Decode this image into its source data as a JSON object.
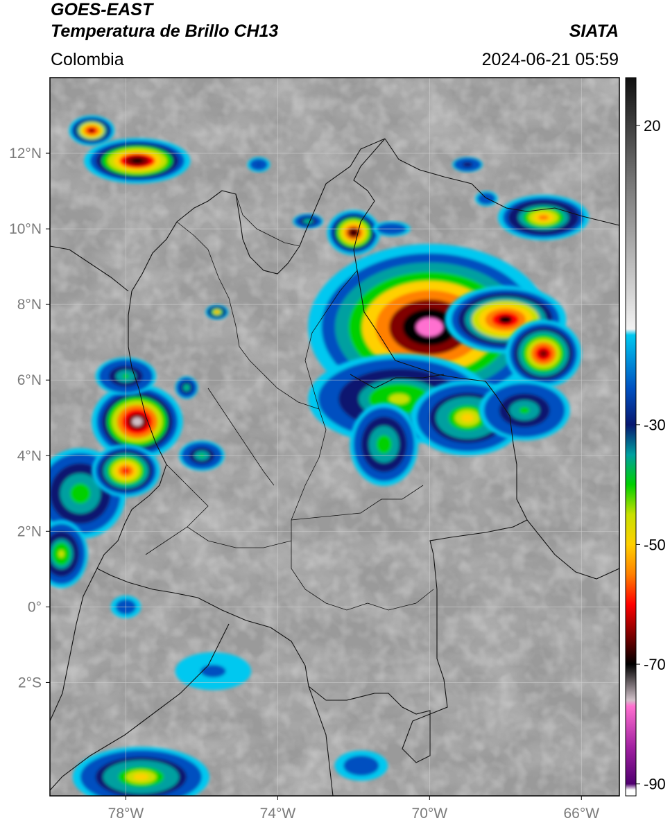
{
  "header": {
    "satellite": "GOES-EAST",
    "product": "Temperatura de Brillo CH13",
    "region": "Colombia",
    "organization": "SIATA",
    "datetime": "2024-06-21 05:59"
  },
  "map": {
    "lon_range": [
      -80,
      -65
    ],
    "lat_range": [
      -5,
      14
    ],
    "lat_ticks": [
      {
        "value": 12,
        "label": "12°N"
      },
      {
        "value": 10,
        "label": "10°N"
      },
      {
        "value": 8,
        "label": "8°N"
      },
      {
        "value": 6,
        "label": "6°N"
      },
      {
        "value": 4,
        "label": "4°N"
      },
      {
        "value": 2,
        "label": "2°N"
      },
      {
        "value": 0,
        "label": "0°"
      },
      {
        "value": -2,
        "label": "2°S"
      }
    ],
    "lon_ticks": [
      {
        "value": -78,
        "label": "78°W"
      },
      {
        "value": -74,
        "label": "74°W"
      },
      {
        "value": -70,
        "label": "70°W"
      },
      {
        "value": -66,
        "label": "66°W"
      }
    ],
    "grid": true
  },
  "colorbar": {
    "range": [
      -92,
      28
    ],
    "ticks": [
      {
        "value": 20,
        "label": "20"
      },
      {
        "value": -30,
        "label": "-30"
      },
      {
        "value": -50,
        "label": "-50"
      },
      {
        "value": -70,
        "label": "-70"
      },
      {
        "value": -90,
        "label": "-90"
      }
    ],
    "stops": [
      {
        "value": 28,
        "color": "#101010"
      },
      {
        "value": 10,
        "color": "#7a7a7a"
      },
      {
        "value": -14,
        "color": "#f2f2f2"
      },
      {
        "value": -15,
        "color": "#00c8f0"
      },
      {
        "value": -24,
        "color": "#0050c0"
      },
      {
        "value": -30,
        "color": "#081870"
      },
      {
        "value": -35,
        "color": "#00a0a0"
      },
      {
        "value": -40,
        "color": "#00d000"
      },
      {
        "value": -45,
        "color": "#c8e000"
      },
      {
        "value": -50,
        "color": "#ffd000"
      },
      {
        "value": -55,
        "color": "#ff8000"
      },
      {
        "value": -60,
        "color": "#ff0000"
      },
      {
        "value": -65,
        "color": "#800000"
      },
      {
        "value": -70,
        "color": "#000000"
      },
      {
        "value": -76,
        "color": "#d0c0c8"
      },
      {
        "value": -77,
        "color": "#ff70d0"
      },
      {
        "value": -84,
        "color": "#a020a0"
      },
      {
        "value": -90,
        "color": "#500070"
      },
      {
        "value": -91,
        "color": "#ffffff"
      }
    ]
  },
  "storms": [
    {
      "lon": -70.0,
      "lat": 7.4,
      "rx": 3.2,
      "ry": 2.2,
      "core": -80
    },
    {
      "lon": -68.0,
      "lat": 7.6,
      "rx": 1.6,
      "ry": 0.9,
      "core": -68
    },
    {
      "lon": -67.0,
      "lat": 6.7,
      "rx": 1.0,
      "ry": 0.9,
      "core": -64
    },
    {
      "lon": -70.8,
      "lat": 5.5,
      "rx": 2.4,
      "ry": 1.2,
      "core": -45
    },
    {
      "lon": -69.0,
      "lat": 5.0,
      "rx": 1.5,
      "ry": 1.0,
      "core": -48
    },
    {
      "lon": -67.5,
      "lat": 5.2,
      "rx": 1.2,
      "ry": 0.8,
      "core": -38
    },
    {
      "lon": -71.2,
      "lat": 4.3,
      "rx": 0.9,
      "ry": 1.1,
      "core": -42
    },
    {
      "lon": -67.0,
      "lat": 10.3,
      "rx": 1.2,
      "ry": 0.6,
      "core": -55
    },
    {
      "lon": -72.0,
      "lat": 9.9,
      "rx": 0.7,
      "ry": 0.6,
      "core": -70
    },
    {
      "lon": -77.7,
      "lat": 11.8,
      "rx": 1.4,
      "ry": 0.6,
      "core": -72
    },
    {
      "lon": -78.9,
      "lat": 12.6,
      "rx": 0.6,
      "ry": 0.4,
      "core": -68
    },
    {
      "lon": -77.7,
      "lat": 4.9,
      "rx": 1.2,
      "ry": 1.0,
      "core": -74
    },
    {
      "lon": -79.2,
      "lat": 3.0,
      "rx": 1.2,
      "ry": 1.2,
      "core": -42
    },
    {
      "lon": -78.0,
      "lat": 3.6,
      "rx": 0.9,
      "ry": 0.7,
      "core": -58
    },
    {
      "lon": -79.7,
      "lat": 1.4,
      "rx": 0.7,
      "ry": 0.9,
      "core": -44
    },
    {
      "lon": -78.0,
      "lat": 6.1,
      "rx": 0.8,
      "ry": 0.5,
      "core": -40
    },
    {
      "lon": -76.0,
      "lat": 4.0,
      "rx": 0.6,
      "ry": 0.4,
      "core": -40
    },
    {
      "lon": -76.4,
      "lat": 5.8,
      "rx": 0.3,
      "ry": 0.3,
      "core": -40
    },
    {
      "lon": -75.6,
      "lat": 7.8,
      "rx": 0.3,
      "ry": 0.2,
      "core": -55
    },
    {
      "lon": -73.2,
      "lat": 10.2,
      "rx": 0.4,
      "ry": 0.2,
      "core": -38
    },
    {
      "lon": -77.6,
      "lat": -4.5,
      "rx": 1.8,
      "ry": 0.8,
      "core": -48
    },
    {
      "lon": -75.7,
      "lat": -1.7,
      "rx": 1.0,
      "ry": 0.5,
      "core": -20
    },
    {
      "lon": -71.8,
      "lat": -4.2,
      "rx": 0.7,
      "ry": 0.4,
      "core": -22
    },
    {
      "lon": -68.5,
      "lat": 10.8,
      "rx": 0.3,
      "ry": 0.2,
      "core": -25
    },
    {
      "lon": -69.0,
      "lat": 11.7,
      "rx": 0.4,
      "ry": 0.2,
      "core": -30
    },
    {
      "lon": -74.5,
      "lat": 11.7,
      "rx": 0.3,
      "ry": 0.2,
      "core": -28
    },
    {
      "lon": -71.0,
      "lat": 10.0,
      "rx": 0.5,
      "ry": 0.2,
      "core": -25
    },
    {
      "lon": -78.0,
      "lat": 0.0,
      "rx": 0.4,
      "ry": 0.3,
      "core": -22
    }
  ]
}
